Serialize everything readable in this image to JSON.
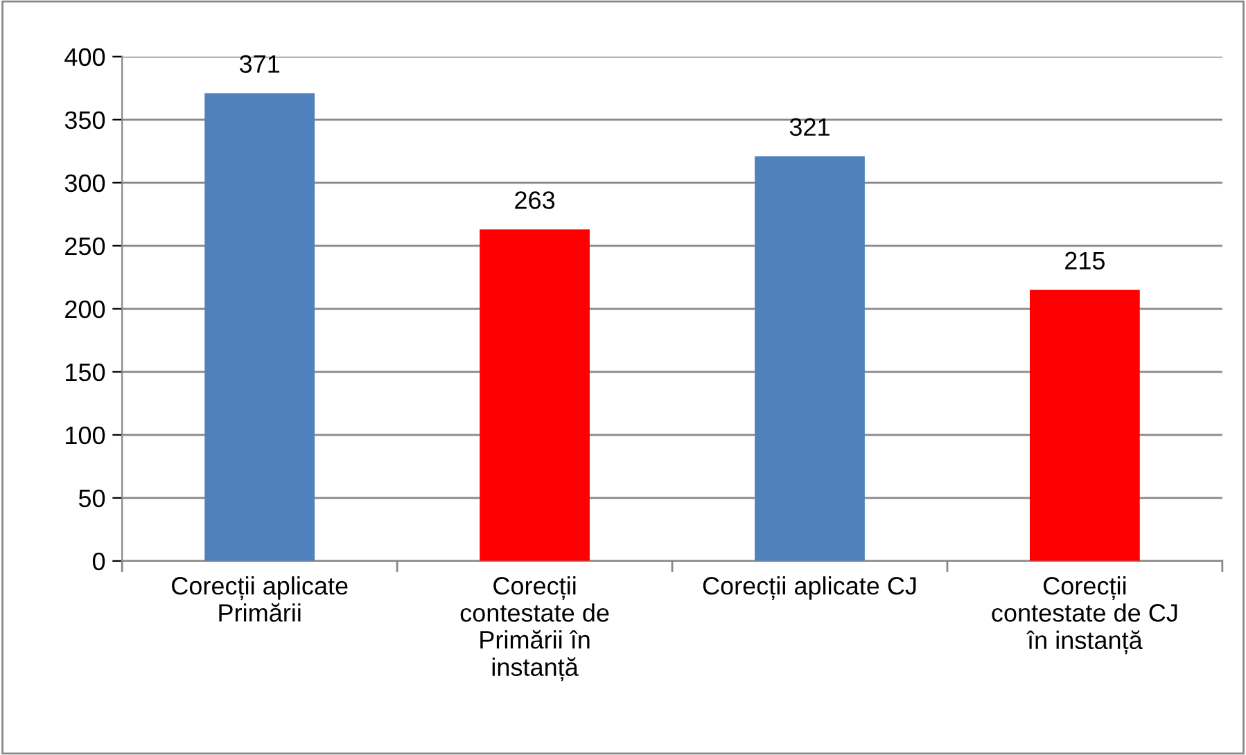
{
  "chart_data": {
    "type": "bar",
    "categories": [
      "Corecții aplicate\nPrimării",
      "Corecții\ncontestate de\nPrimării în\ninstanță",
      "Corecții aplicate CJ",
      "Corecții\ncontestate de CJ\nîn instanță"
    ],
    "values": [
      371,
      263,
      321,
      215
    ],
    "colors": [
      "#4f81bd",
      "#ff0000",
      "#4f81bd",
      "#ff0000"
    ],
    "ylim": [
      0,
      400
    ],
    "yticks": [
      0,
      50,
      100,
      150,
      200,
      250,
      300,
      350,
      400
    ],
    "grid": "y",
    "data_labels": true,
    "legend": false
  }
}
